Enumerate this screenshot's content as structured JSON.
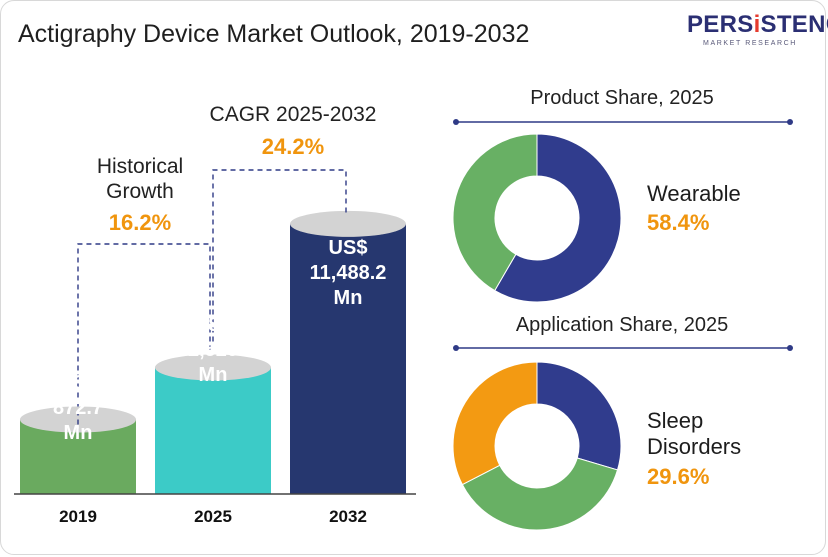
{
  "title": "Actigraphy Device Market Outlook, 2019-2032",
  "logo": {
    "brand_prefix": "PERS",
    "brand_i": "i",
    "brand_suffix": "STENCE",
    "sub": "MARKET RESEARCH"
  },
  "colors": {
    "bar_2019": "#6aaa5f",
    "bar_2025": "#3ccbc7",
    "bar_2032": "#26376f",
    "navy": "#303c8d",
    "green": "#68b064",
    "orange": "#f39a12",
    "accent_pct": "#f0950e"
  },
  "annotations": {
    "historical_label": "Historical\nGrowth",
    "historical_value": "16.2%",
    "cagr_label": "CAGR 2025-2032",
    "cagr_value": "24.2%"
  },
  "chart_data": [
    {
      "type": "bar",
      "title": "Actigraphy Device Market Outlook, 2019-2032",
      "categories": [
        "2019",
        "2025",
        "2032"
      ],
      "values": [
        872.7,
        2520,
        11488.2
      ],
      "value_labels": [
        "US$\n872.7\nMn",
        "US$\n2,520\nMn",
        "US$\n11,488.2\nMn"
      ],
      "ylabel": "",
      "grid": false
    },
    {
      "type": "pie",
      "title": "Product Share, 2025",
      "slices": [
        {
          "name": "Wearable",
          "value": 58.4,
          "color": "#303c8d"
        },
        {
          "name": "",
          "value": 41.6,
          "color": "#68b064"
        }
      ],
      "highlight": {
        "label": "Wearable",
        "value": "58.4%"
      }
    },
    {
      "type": "pie",
      "title": "Application Share, 2025",
      "slices": [
        {
          "name": "Sleep Disorders",
          "value": 29.6,
          "color": "#303c8d"
        },
        {
          "name": "",
          "value": 37.8,
          "color": "#68b064"
        },
        {
          "name": "",
          "value": 32.6,
          "color": "#f39a12"
        }
      ],
      "highlight": {
        "label": "Sleep\nDisorders",
        "value": "29.6%"
      }
    }
  ]
}
